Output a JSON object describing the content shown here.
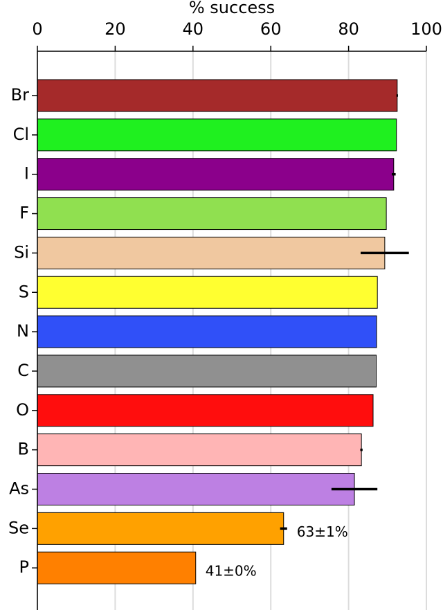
{
  "chart_data": {
    "type": "bar",
    "orientation": "horizontal",
    "xlabel": "% success",
    "categories": [
      "Br",
      "Cl",
      "I",
      "F",
      "Si",
      "S",
      "N",
      "C",
      "O",
      "B",
      "As",
      "Se",
      "P"
    ],
    "values": [
      92.5,
      92.3,
      91.6,
      89.7,
      89.3,
      87.4,
      87.2,
      87.1,
      86.3,
      83.3,
      81.5,
      63.3,
      40.7
    ],
    "errors": [
      0.2,
      0,
      0.5,
      0,
      6.2,
      0,
      0,
      0,
      0,
      0.3,
      5.9,
      0.9,
      0
    ],
    "value_labels": [
      null,
      null,
      null,
      null,
      null,
      null,
      null,
      null,
      null,
      null,
      null,
      "63±1%",
      "41±0%"
    ],
    "colors": [
      "#a52a2a",
      "#1ff01f",
      "#8b008b",
      "#90e050",
      "#f0c8a0",
      "#ffff30",
      "#3050f8",
      "#909090",
      "#ff0d0d",
      "#ffb5b5",
      "#bd80e3",
      "#ffa100",
      "#ff8000"
    ],
    "xlim": [
      0,
      100
    ],
    "xticks": [
      0,
      20,
      40,
      60,
      80,
      100
    ],
    "grid": true
  }
}
